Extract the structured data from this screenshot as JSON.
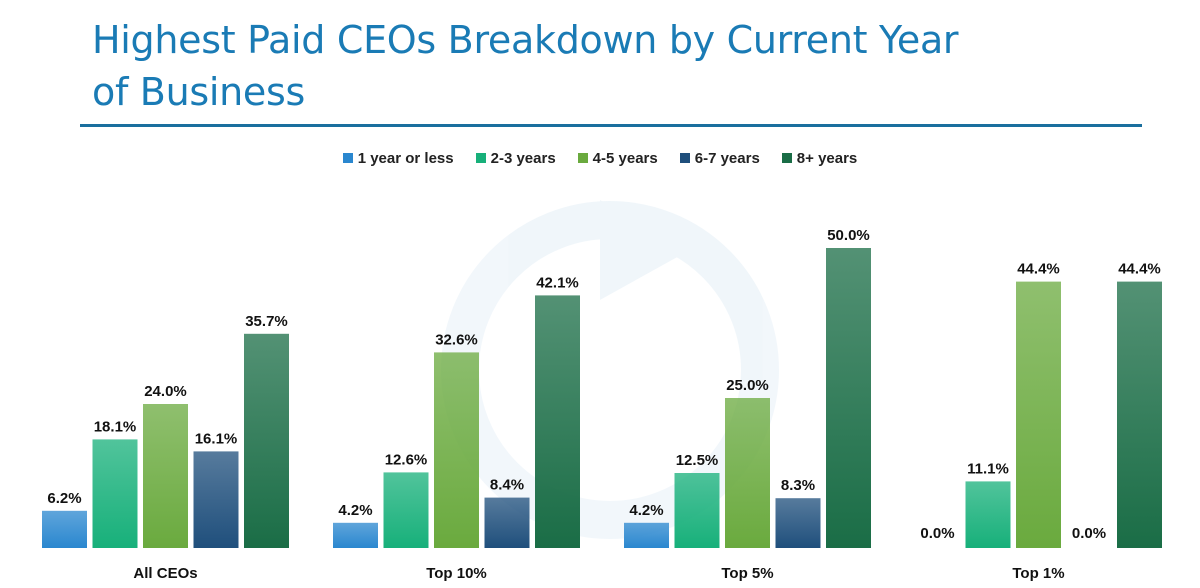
{
  "title": "Highest Paid CEOs Breakdown by Current Year of Business",
  "colors": {
    "title": "#1a7bb5",
    "rule": "#1a6f9e",
    "series": [
      "#2a87cf",
      "#17b07a",
      "#6aaa3e",
      "#1f4f7c",
      "#1a6d46"
    ]
  },
  "chart_data": {
    "type": "bar",
    "title": "Highest Paid CEOs Breakdown by Current Year of Business",
    "xlabel": "",
    "ylabel": "",
    "ylim": [
      0,
      55
    ],
    "grid": false,
    "legend_position": "top-center",
    "categories": [
      "All CEOs",
      "Top 10%",
      "Top 5%",
      "Top 1%"
    ],
    "series": [
      {
        "name": "1 year or less",
        "values": [
          6.2,
          4.2,
          4.2,
          0.0
        ],
        "labels": [
          "6.2%",
          "4.2%",
          "4.2%",
          "0.0%"
        ]
      },
      {
        "name": "2-3 years",
        "values": [
          18.1,
          12.6,
          12.5,
          11.1
        ],
        "labels": [
          "18.1%",
          "12.6%",
          "12.5%",
          "11.1%"
        ]
      },
      {
        "name": "4-5 years",
        "values": [
          24.0,
          32.6,
          25.0,
          44.4
        ],
        "labels": [
          "24.0%",
          "32.6%",
          "25.0%",
          "44.4%"
        ]
      },
      {
        "name": "6-7 years",
        "values": [
          16.1,
          8.4,
          8.3,
          0.0
        ],
        "labels": [
          "16.1%",
          "8.4%",
          "8.3%",
          "0.0%"
        ]
      },
      {
        "name": "8+ years",
        "values": [
          35.7,
          42.1,
          50.0,
          44.4
        ],
        "labels": [
          "35.7%",
          "42.1%",
          "50.0%",
          "44.4%"
        ]
      }
    ]
  }
}
